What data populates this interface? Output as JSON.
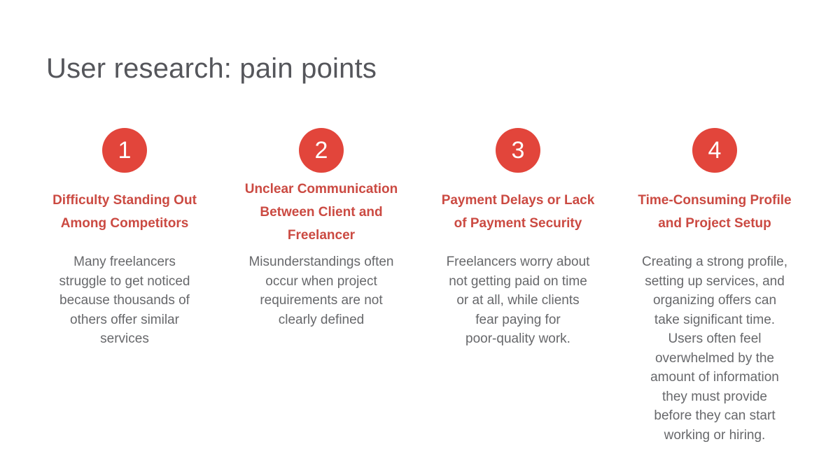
{
  "slide": {
    "title": "User research: pain points"
  },
  "colors": {
    "circle_red": "#e2453b",
    "heading_red": "#cb4a42",
    "title_gray": "#55565b",
    "body_gray": "#67686b",
    "background": "#ffffff"
  },
  "columns": [
    {
      "number": "1",
      "heading": "Difficulty Standing Out\nAmong Competitors",
      "body": "Many freelancers\nstruggle to get noticed\nbecause thousands of\nothers offer similar\nservices"
    },
    {
      "number": "2",
      "heading": "Unclear Communication\nBetween Client and\nFreelancer",
      "body": "Misunderstandings often\noccur when project\nrequirements are not\nclearly defined"
    },
    {
      "number": "3",
      "heading": "Payment Delays or Lack\nof Payment Security",
      "body": "Freelancers worry about\nnot getting paid on time\nor at all, while clients\nfear paying for\npoor-quality work."
    },
    {
      "number": "4",
      "heading": "Time-Consuming Profile\nand Project Setup",
      "body": "Creating a strong profile,\nsetting up services, and\norganizing offers can\ntake significant time.\nUsers often feel\noverwhelmed by the\namount of information\nthey must provide\nbefore they can start\nworking or hiring."
    }
  ]
}
